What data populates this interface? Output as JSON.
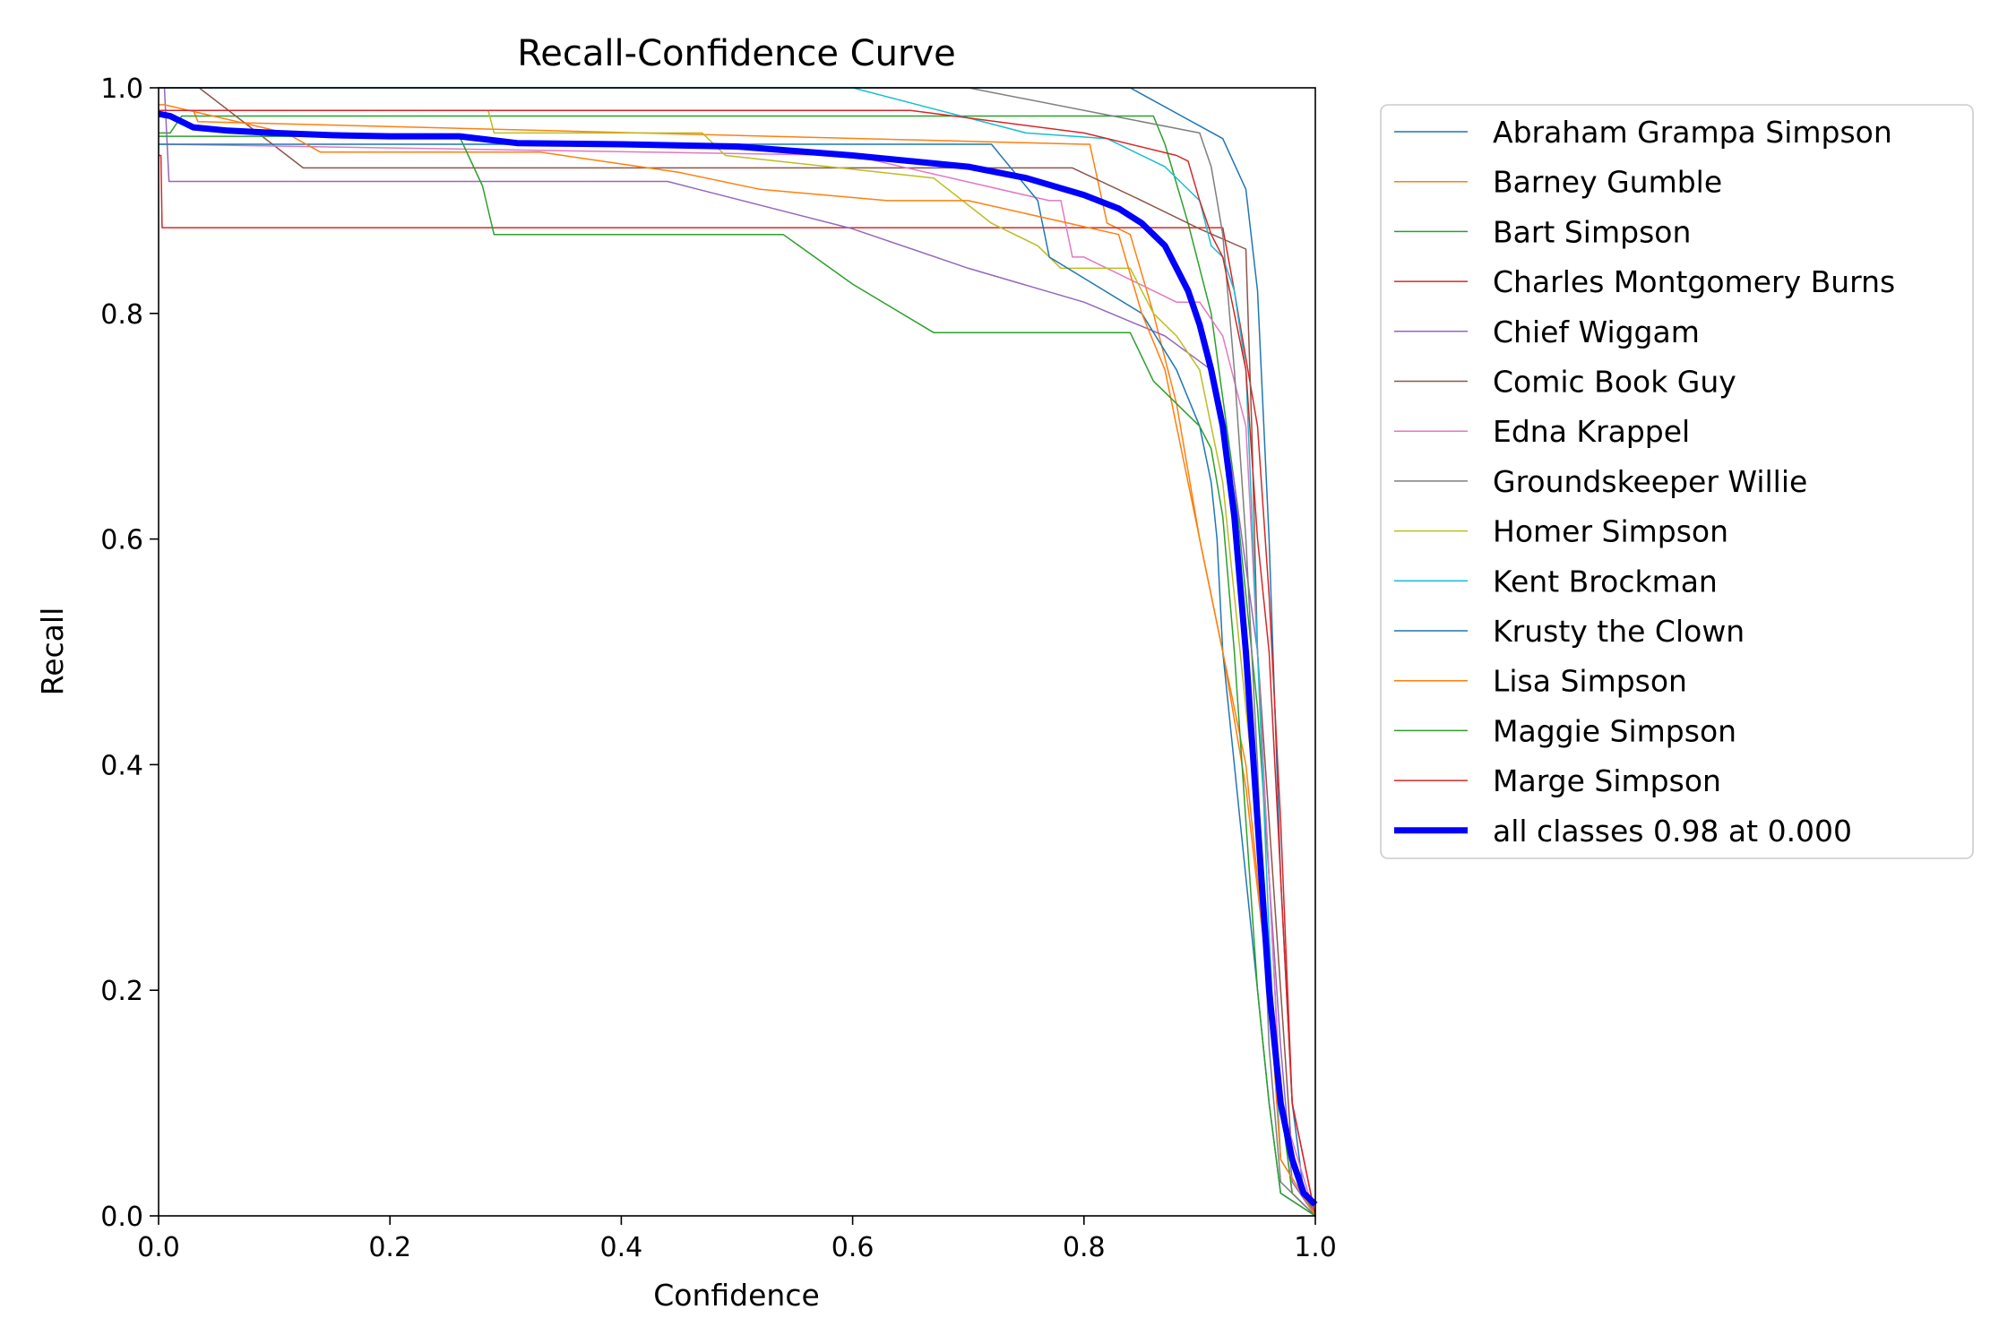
{
  "chart_data": {
    "type": "line",
    "title": "Recall-Confidence Curve",
    "xlabel": "Confidence",
    "ylabel": "Recall",
    "xlim": [
      0,
      1
    ],
    "ylim": [
      0,
      1
    ],
    "xticks": [
      "0.0",
      "0.2",
      "0.4",
      "0.6",
      "0.8",
      "1.0"
    ],
    "yticks": [
      "0.0",
      "0.2",
      "0.4",
      "0.6",
      "0.8",
      "1.0"
    ],
    "grid": false,
    "legend_position": "outside-right",
    "series": [
      {
        "name": "Abraham Grampa Simpson",
        "color": "#1f77b4",
        "width": 1.5,
        "x": [
          0,
          0.003,
          0.005,
          0.84,
          0.92,
          0.94,
          0.95,
          0.96,
          0.97,
          0.98,
          0.99,
          1.0
        ],
        "y": [
          1.0,
          1.0,
          1.0,
          1.0,
          0.955,
          0.91,
          0.82,
          0.6,
          0.3,
          0.1,
          0.02,
          0
        ]
      },
      {
        "name": "Barney Gumble",
        "color": "#ff7f0e",
        "width": 1.5,
        "x": [
          0,
          0.03,
          0.034,
          0.8,
          0.805,
          0.82,
          0.84,
          0.86,
          0.88,
          0.9,
          0.92,
          0.94,
          0.96,
          0.97,
          0.98,
          1.0
        ],
        "y": [
          0.98,
          0.98,
          0.97,
          0.95,
          0.95,
          0.88,
          0.87,
          0.8,
          0.72,
          0.6,
          0.5,
          0.38,
          0.2,
          0.1,
          0.02,
          0
        ]
      },
      {
        "name": "Bart Simpson",
        "color": "#2ca02c",
        "width": 1.5,
        "x": [
          0,
          0.01,
          0.02,
          0.86,
          0.87,
          0.89,
          0.91,
          0.93,
          0.95,
          0.96,
          0.97,
          0.98,
          1.0
        ],
        "y": [
          0.96,
          0.96,
          0.975,
          0.975,
          0.95,
          0.88,
          0.8,
          0.65,
          0.45,
          0.3,
          0.1,
          0.02,
          0
        ]
      },
      {
        "name": "Charles Montgomery Burns",
        "color": "#d62728",
        "width": 1.5,
        "x": [
          0,
          0.002,
          0.003,
          0.92,
          0.93,
          0.95,
          0.96,
          0.97,
          0.98,
          1.0
        ],
        "y": [
          0.94,
          0.94,
          0.876,
          0.876,
          0.82,
          0.7,
          0.55,
          0.35,
          0.1,
          0
        ]
      },
      {
        "name": "Chief Wiggam",
        "color": "#9467bd",
        "width": 1.5,
        "x": [
          0,
          0.005,
          0.009,
          0.44,
          0.6,
          0.7,
          0.8,
          0.87,
          0.91,
          0.93,
          0.95,
          0.96,
          0.97,
          0.98,
          1.0
        ],
        "y": [
          1.0,
          1.0,
          0.917,
          0.917,
          0.875,
          0.84,
          0.81,
          0.78,
          0.75,
          0.65,
          0.5,
          0.3,
          0.15,
          0.03,
          0
        ]
      },
      {
        "name": "Comic Book Guy",
        "color": "#8c564b",
        "width": 1.5,
        "x": [
          0,
          0.03,
          0.035,
          0.125,
          0.79,
          0.85,
          0.9,
          0.94,
          0.945,
          0.95,
          0.96,
          0.97,
          0.98,
          1.0
        ],
        "y": [
          1.0,
          1.0,
          1.0,
          0.929,
          0.929,
          0.9,
          0.875,
          0.857,
          0.7,
          0.5,
          0.35,
          0.2,
          0.05,
          0
        ]
      },
      {
        "name": "Edna Krappel",
        "color": "#e377c2",
        "width": 1.5,
        "x": [
          0,
          0.005,
          0.6,
          0.77,
          0.78,
          0.79,
          0.8,
          0.88,
          0.9,
          0.92,
          0.94,
          0.95,
          0.96,
          0.97,
          1.0
        ],
        "y": [
          0.95,
          0.95,
          0.94,
          0.9,
          0.9,
          0.85,
          0.85,
          0.81,
          0.81,
          0.78,
          0.7,
          0.5,
          0.3,
          0.1,
          0
        ]
      },
      {
        "name": "Groundskeeper Willie",
        "color": "#7f7f7f",
        "width": 1.5,
        "x": [
          0,
          0.7,
          0.9,
          0.91,
          0.915,
          0.92,
          0.93,
          0.94,
          0.95,
          0.96,
          0.97,
          1.0
        ],
        "y": [
          1.0,
          1.0,
          0.96,
          0.93,
          0.9,
          0.87,
          0.75,
          0.6,
          0.4,
          0.15,
          0.03,
          0
        ]
      },
      {
        "name": "Homer Simpson",
        "color": "#bcbd22",
        "width": 1.5,
        "x": [
          0,
          0.005,
          0.285,
          0.29,
          0.47,
          0.49,
          0.67,
          0.72,
          0.76,
          0.78,
          0.8,
          0.84,
          0.86,
          0.88,
          0.9,
          0.92,
          0.93,
          0.94,
          0.95,
          0.96,
          0.97,
          1.0
        ],
        "y": [
          0.98,
          0.98,
          0.98,
          0.96,
          0.96,
          0.94,
          0.92,
          0.88,
          0.86,
          0.84,
          0.84,
          0.84,
          0.8,
          0.78,
          0.75,
          0.65,
          0.55,
          0.45,
          0.35,
          0.2,
          0.05,
          0
        ]
      },
      {
        "name": "Kent Brockman",
        "color": "#17becf",
        "width": 1.5,
        "x": [
          0,
          0.6,
          0.75,
          0.82,
          0.87,
          0.9,
          0.91,
          0.92,
          0.93,
          0.94,
          0.95,
          0.96,
          0.97,
          1.0
        ],
        "y": [
          1.0,
          1.0,
          0.96,
          0.955,
          0.93,
          0.9,
          0.86,
          0.85,
          0.82,
          0.75,
          0.5,
          0.25,
          0.05,
          0
        ]
      },
      {
        "name": "Krusty the Clown",
        "color": "#1f77b4",
        "width": 1.5,
        "x": [
          0,
          0.005,
          0.72,
          0.76,
          0.77,
          0.85,
          0.88,
          0.9,
          0.91,
          0.915,
          0.92,
          0.94,
          0.95,
          0.96,
          0.97,
          1.0
        ],
        "y": [
          0.95,
          0.95,
          0.95,
          0.9,
          0.85,
          0.8,
          0.75,
          0.7,
          0.65,
          0.6,
          0.5,
          0.3,
          0.2,
          0.1,
          0.02,
          0
        ]
      },
      {
        "name": "Lisa Simpson",
        "color": "#ff7f0e",
        "width": 1.5,
        "x": [
          0,
          0.005,
          0.11,
          0.14,
          0.33,
          0.45,
          0.52,
          0.63,
          0.7,
          0.83,
          0.85,
          0.87,
          0.88,
          0.89,
          0.9,
          0.91,
          0.92,
          0.93,
          0.94,
          0.95,
          0.96,
          0.97,
          1.0
        ],
        "y": [
          0.985,
          0.985,
          0.96,
          0.943,
          0.943,
          0.925,
          0.91,
          0.9,
          0.9,
          0.87,
          0.8,
          0.75,
          0.7,
          0.65,
          0.6,
          0.55,
          0.5,
          0.45,
          0.4,
          0.3,
          0.2,
          0.05,
          0
        ]
      },
      {
        "name": "Maggie Simpson",
        "color": "#2ca02c",
        "width": 1.5,
        "x": [
          0,
          0.005,
          0.26,
          0.28,
          0.29,
          0.54,
          0.6,
          0.67,
          0.84,
          0.86,
          0.9,
          0.91,
          0.92,
          0.93,
          0.94,
          0.95,
          0.96,
          0.97,
          1.0
        ],
        "y": [
          0.957,
          0.957,
          0.957,
          0.913,
          0.87,
          0.87,
          0.826,
          0.783,
          0.783,
          0.74,
          0.7,
          0.68,
          0.62,
          0.5,
          0.35,
          0.2,
          0.1,
          0.02,
          0
        ]
      },
      {
        "name": "Marge Simpson",
        "color": "#d62728",
        "width": 1.5,
        "x": [
          0,
          0.005,
          0.65,
          0.8,
          0.88,
          0.89,
          0.9,
          0.91,
          0.92,
          0.93,
          0.94,
          0.95,
          0.96,
          0.97,
          0.98,
          1.0
        ],
        "y": [
          0.98,
          0.98,
          0.98,
          0.96,
          0.94,
          0.935,
          0.9,
          0.87,
          0.85,
          0.8,
          0.75,
          0.6,
          0.5,
          0.3,
          0.1,
          0
        ]
      },
      {
        "name": "all classes 0.98 at 0.000",
        "color": "#0000ff",
        "width": 7,
        "x": [
          0,
          0.01,
          0.03,
          0.06,
          0.1,
          0.15,
          0.2,
          0.26,
          0.31,
          0.4,
          0.5,
          0.6,
          0.7,
          0.75,
          0.8,
          0.83,
          0.85,
          0.87,
          0.88,
          0.89,
          0.9,
          0.91,
          0.92,
          0.93,
          0.94,
          0.95,
          0.96,
          0.97,
          0.98,
          0.99,
          1.0
        ],
        "y": [
          0.977,
          0.975,
          0.965,
          0.962,
          0.96,
          0.958,
          0.957,
          0.957,
          0.951,
          0.95,
          0.948,
          0.94,
          0.93,
          0.92,
          0.905,
          0.893,
          0.88,
          0.86,
          0.84,
          0.82,
          0.79,
          0.75,
          0.7,
          0.62,
          0.5,
          0.35,
          0.2,
          0.1,
          0.05,
          0.02,
          0.01
        ]
      }
    ]
  }
}
